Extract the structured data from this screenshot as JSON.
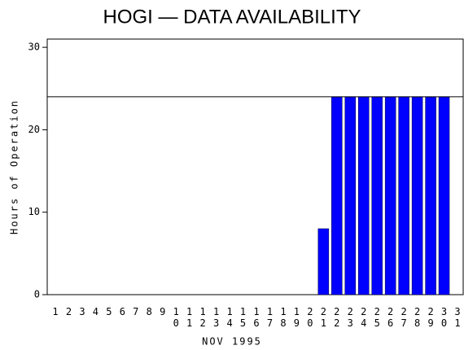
{
  "chart_data": {
    "type": "bar",
    "title": "HOGI — DATA AVAILABILITY",
    "x_label": "NOV 1995",
    "y_label": "Hours of Operation",
    "categories": [
      "1",
      "2",
      "3",
      "4",
      "5",
      "6",
      "7",
      "8",
      "9",
      "10",
      "11",
      "12",
      "13",
      "14",
      "15",
      "16",
      "17",
      "18",
      "19",
      "20",
      "21",
      "22",
      "23",
      "24",
      "25",
      "26",
      "27",
      "28",
      "29",
      "30",
      "31"
    ],
    "values": [
      0,
      0,
      0,
      0,
      0,
      0,
      0,
      0,
      0,
      0,
      0,
      0,
      0,
      0,
      0,
      0,
      0,
      0,
      0,
      0,
      8,
      24,
      24,
      24,
      24,
      24,
      24,
      24,
      24,
      24,
      0
    ],
    "color": "#0000ff",
    "reference_line": 24,
    "ylim": [
      0,
      31
    ],
    "yticks": [
      0,
      10,
      20,
      30
    ]
  }
}
